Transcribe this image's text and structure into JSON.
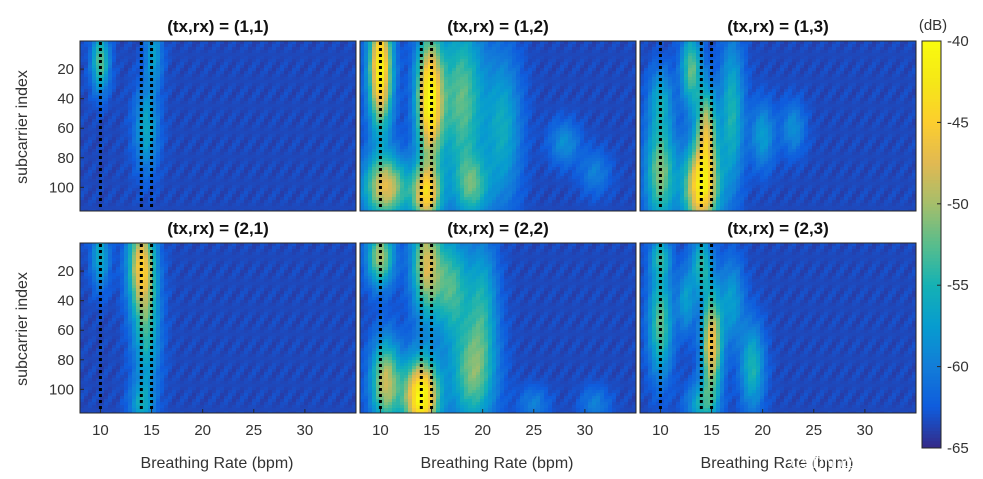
{
  "chart_data": {
    "type": "heatmap",
    "xlabel": "Breathing Rate (bpm)",
    "ylabel": "subcarrier index",
    "xlim": [
      8,
      35
    ],
    "ylim": [
      1,
      116
    ],
    "xticks": [
      10,
      15,
      20,
      25,
      30
    ],
    "yticks": [
      20,
      40,
      60,
      80,
      100
    ],
    "markers_bpm": [
      10,
      14,
      15
    ],
    "colorbar": {
      "unit": "(dB)",
      "min": -65,
      "max": -40,
      "ticks": [
        -40,
        -45,
        -50,
        -55,
        -60,
        -65
      ],
      "colormap": "parula"
    },
    "panels": [
      {
        "title": "(tx,rx) = (1,1)",
        "blobs": [
          [
            10,
            15,
            0.6,
            14,
            0.45
          ],
          [
            14.5,
            60,
            0.8,
            20,
            0.3
          ],
          [
            15.2,
            10,
            0.6,
            15,
            0.25
          ]
        ]
      },
      {
        "title": "(tx,rx) = (1,2)",
        "blobs": [
          [
            10,
            20,
            0.8,
            28,
            0.9
          ],
          [
            14.8,
            40,
            0.9,
            30,
            0.9
          ],
          [
            10.5,
            100,
            1.5,
            15,
            0.65
          ],
          [
            14.5,
            105,
            1.0,
            14,
            0.7
          ],
          [
            18,
            40,
            1.5,
            40,
            0.45
          ],
          [
            22,
            60,
            1.2,
            35,
            0.3
          ],
          [
            19,
            100,
            1.2,
            15,
            0.35
          ],
          [
            28,
            70,
            1.0,
            10,
            0.2
          ],
          [
            31,
            90,
            1.0,
            10,
            0.15
          ]
        ]
      },
      {
        "title": "(tx,rx) = (1,3)",
        "blobs": [
          [
            13,
            20,
            0.7,
            18,
            0.45
          ],
          [
            14.5,
            60,
            0.7,
            20,
            0.55
          ],
          [
            14,
            100,
            1.2,
            20,
            0.85
          ],
          [
            10,
            90,
            1.0,
            25,
            0.5
          ],
          [
            17,
            50,
            0.8,
            35,
            0.35
          ],
          [
            20,
            65,
            0.8,
            15,
            0.25
          ],
          [
            23,
            60,
            0.8,
            12,
            0.2
          ],
          [
            10,
            40,
            0.8,
            15,
            0.25
          ]
        ]
      },
      {
        "title": "(tx,rx) = (2,1)",
        "blobs": [
          [
            14,
            15,
            0.9,
            22,
            0.65
          ],
          [
            14.5,
            60,
            0.9,
            30,
            0.35
          ],
          [
            10,
            10,
            0.6,
            15,
            0.3
          ],
          [
            14,
            110,
            0.8,
            10,
            0.25
          ]
        ]
      },
      {
        "title": "(tx,rx) = (2,2)",
        "blobs": [
          [
            10,
            10,
            0.9,
            14,
            0.55
          ],
          [
            14.5,
            15,
            1.0,
            25,
            0.6
          ],
          [
            14,
            105,
            1.2,
            18,
            0.95
          ],
          [
            10.5,
            95,
            1.0,
            20,
            0.6
          ],
          [
            17,
            30,
            1.2,
            25,
            0.4
          ],
          [
            19,
            90,
            1.5,
            25,
            0.45
          ],
          [
            20,
            40,
            1.0,
            30,
            0.3
          ],
          [
            25,
            110,
            1.0,
            8,
            0.15
          ],
          [
            31,
            110,
            1.0,
            8,
            0.15
          ]
        ]
      },
      {
        "title": "(tx,rx) = (2,3)",
        "blobs": [
          [
            15,
            70,
            0.7,
            25,
            0.7
          ],
          [
            10,
            55,
            0.8,
            25,
            0.45
          ],
          [
            14,
            15,
            0.7,
            15,
            0.35
          ],
          [
            10,
            10,
            0.7,
            10,
            0.3
          ],
          [
            12.5,
            40,
            0.6,
            15,
            0.25
          ],
          [
            19,
            85,
            0.8,
            20,
            0.35
          ],
          [
            17,
            40,
            0.8,
            20,
            0.25
          ],
          [
            14,
            110,
            1.0,
            10,
            0.3
          ]
        ]
      }
    ]
  },
  "watermark": "CSDN @不讲魔法讲道理"
}
